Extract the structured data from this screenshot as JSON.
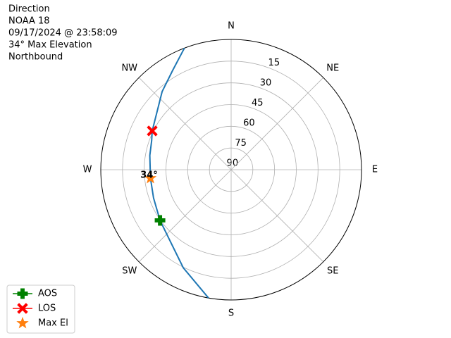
{
  "chart_data": {
    "type": "polar",
    "title_lines": [
      "Direction",
      "NOAA 18",
      "09/17/2024 @ 23:58:09",
      "34° Max Elevation",
      "Northbound"
    ],
    "rlim": [
      90,
      0
    ],
    "rticks": [
      90,
      75,
      60,
      45,
      30,
      15
    ],
    "thetaticks": [
      {
        "value": 0,
        "label": "N"
      },
      {
        "value": 45,
        "label": "NE"
      },
      {
        "value": 90,
        "label": "E"
      },
      {
        "value": 135,
        "label": "SE"
      },
      {
        "value": 180,
        "label": "S"
      },
      {
        "value": 225,
        "label": "SW"
      },
      {
        "value": 270,
        "label": "W"
      },
      {
        "value": 315,
        "label": "NW"
      }
    ],
    "grid": true,
    "track": {
      "color": "#1f77b4",
      "x": [
        190,
        206,
        221.6,
        234.5,
        250,
        264,
        280,
        290,
        296.2,
        318.6,
        329.5,
        339
      ],
      "values": [
        0,
        14.6,
        25.7,
        29.7,
        33,
        34,
        33,
        31.6,
        29.3,
        18,
        10.4,
        0
      ]
    },
    "series": [
      {
        "name": "AOS",
        "color": "#008000",
        "marker": "plus",
        "x": [
          234.5
        ],
        "values": [
          29.7
        ]
      },
      {
        "name": "LOS",
        "color": "#ff0000",
        "marker": "x",
        "x": [
          296.2
        ],
        "values": [
          29.3
        ]
      },
      {
        "name": "Max El",
        "color": "#ff7f0e",
        "marker": "star",
        "x": [
          264
        ],
        "values": [
          34
        ]
      }
    ],
    "annotation": "34°",
    "legend": "lower left"
  }
}
